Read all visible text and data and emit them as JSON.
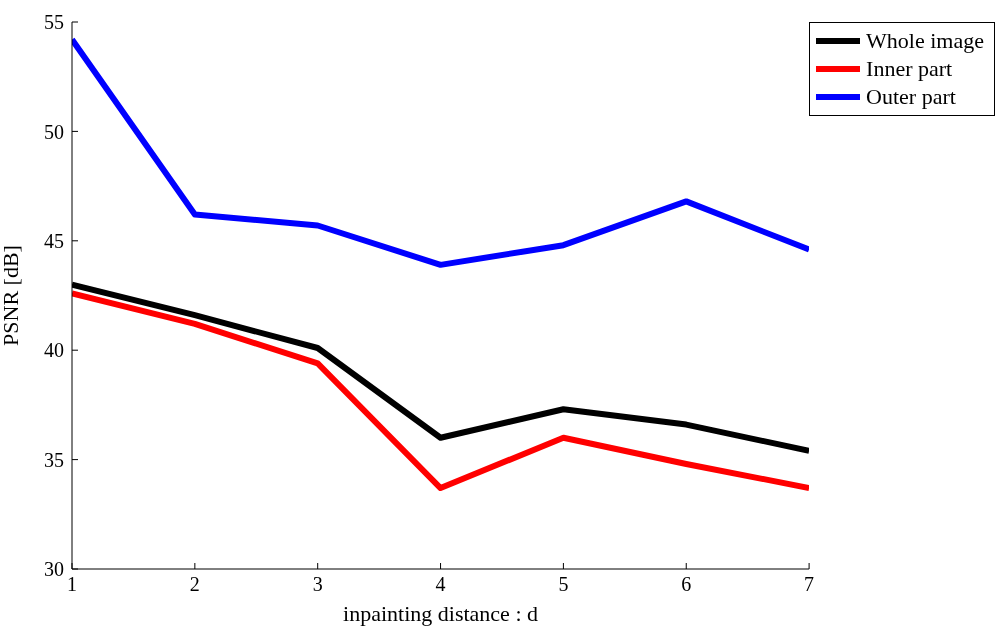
{
  "chart_data": {
    "type": "line",
    "xlabel": "inpainting distance : d",
    "ylabel": "PSNR [dB]",
    "x": [
      1,
      2,
      3,
      4,
      5,
      6,
      7
    ],
    "series": [
      {
        "name": "Whole image",
        "color": "#000000",
        "values": [
          43.0,
          41.6,
          40.1,
          36.0,
          37.3,
          36.6,
          35.4
        ]
      },
      {
        "name": "Inner part",
        "color": "#ff0000",
        "values": [
          42.6,
          41.2,
          39.4,
          33.7,
          36.0,
          34.8,
          33.7
        ]
      },
      {
        "name": "Outer part",
        "color": "#0000ff",
        "values": [
          54.2,
          46.2,
          45.7,
          43.9,
          44.8,
          46.8,
          44.6
        ]
      }
    ],
    "xlim": [
      1,
      7
    ],
    "xticks": [
      1,
      2,
      3,
      4,
      5,
      6,
      7
    ],
    "ylim": [
      30,
      55
    ],
    "yticks": [
      30,
      35,
      40,
      45,
      50,
      55
    ],
    "legend": "top right",
    "marker": "none",
    "line_style": "solid"
  }
}
